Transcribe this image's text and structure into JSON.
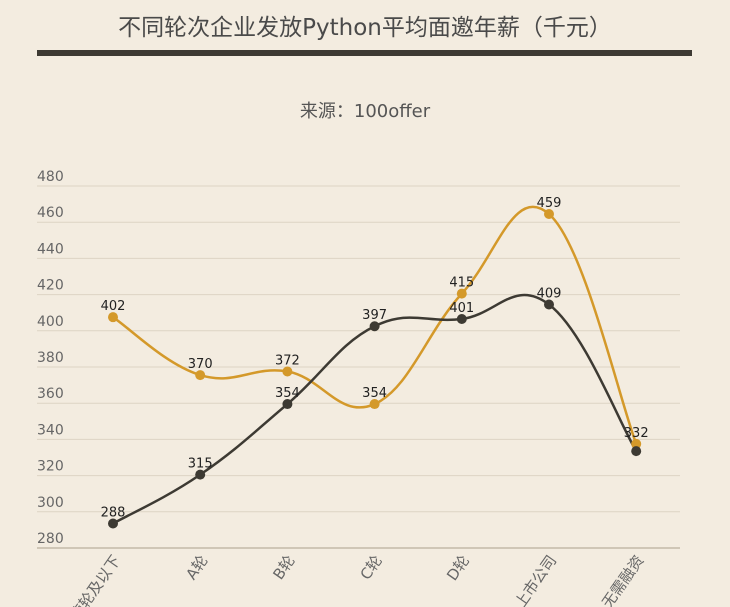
{
  "chart_data": {
    "type": "line",
    "title": "不同轮次企业发放Python平均面邀年薪（千元）",
    "subtitle": "来源：100offer",
    "categories": [
      "天使轮及以下",
      "A轮",
      "B轮",
      "C轮",
      "D轮",
      "上市公司",
      "无需融资"
    ],
    "series": [
      {
        "color": "#d4992a",
        "values": [
          402,
          370,
          372,
          354,
          415,
          459,
          332
        ]
      },
      {
        "color": "#3d3a33",
        "values": [
          288,
          315,
          354,
          397,
          401,
          409,
          328
        ]
      }
    ],
    "yticks": [
      280,
      300,
      320,
      340,
      360,
      380,
      400,
      420,
      440,
      460,
      480
    ],
    "ylim": [
      280,
      480
    ],
    "grid": true
  }
}
